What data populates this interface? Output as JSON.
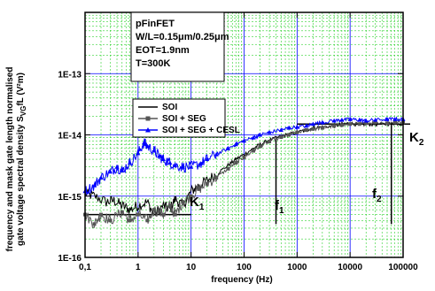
{
  "chart_data": {
    "type": "line",
    "xlabel": "frequency (Hz)",
    "ylabel_line1": "frequency and mask gate length normalised",
    "ylabel_line2_prefix": "gate voltage spectral density S",
    "ylabel_sub": "VG",
    "ylabel_line2_suffix": "fL (V²m)",
    "x_scale": "log",
    "y_scale": "log",
    "xlim": [
      0.1,
      100000
    ],
    "ylim": [
      1e-16,
      1e-12
    ],
    "grid": true,
    "x_ticks": [
      {
        "value": 0.1,
        "label": "0,1"
      },
      {
        "value": 1,
        "label": "1"
      },
      {
        "value": 10,
        "label": "10"
      },
      {
        "value": 100,
        "label": "100"
      },
      {
        "value": 1000,
        "label": "1000"
      },
      {
        "value": 10000,
        "label": "10000"
      },
      {
        "value": 100000,
        "label": "100000"
      }
    ],
    "y_ticks": [
      {
        "value": 1e-16,
        "label": "1E-16"
      },
      {
        "value": 1e-15,
        "label": "1E-15"
      },
      {
        "value": 1e-14,
        "label": "1E-14"
      },
      {
        "value": 1e-13,
        "label": "1E-13"
      }
    ],
    "info_box": [
      "pFinFET",
      "W/L=0.15μm/0.25μm",
      "EOT=1.9nm",
      "T=300K"
    ],
    "legend_position": "top-left",
    "series": [
      {
        "name": "SOI",
        "color": "#000000",
        "marker": "none",
        "points": [
          [
            0.1,
            1.1e-15
          ],
          [
            0.15,
            1e-15
          ],
          [
            0.25,
            8e-16
          ],
          [
            0.35,
            8.5e-16
          ],
          [
            0.5,
            7e-16
          ],
          [
            0.7,
            6e-16
          ],
          [
            1.0,
            7e-16
          ],
          [
            1.5,
            8e-16
          ],
          [
            2,
            5e-16
          ],
          [
            3,
            7e-16
          ],
          [
            4,
            6e-16
          ],
          [
            5,
            9e-16
          ],
          [
            7,
            7e-16
          ],
          [
            10,
            1.2e-15
          ],
          [
            14,
            1.5e-15
          ],
          [
            20,
            1.8e-15
          ],
          [
            30,
            2.3e-15
          ],
          [
            50,
            3.2e-15
          ],
          [
            70,
            4e-15
          ],
          [
            100,
            4.8e-15
          ],
          [
            150,
            6e-15
          ],
          [
            200,
            7e-15
          ],
          [
            300,
            8.2e-15
          ],
          [
            500,
            9.5e-15
          ],
          [
            700,
            1.02e-14
          ],
          [
            1000,
            1.1e-14
          ],
          [
            1500,
            1.2e-14
          ],
          [
            2000,
            1.3e-14
          ],
          [
            3000,
            1.35e-14
          ],
          [
            5000,
            1.4e-14
          ],
          [
            7000,
            1.5e-14
          ],
          [
            10000,
            1.55e-14
          ],
          [
            15000,
            1.45e-14
          ],
          [
            20000,
            1.5e-14
          ],
          [
            30000,
            1.48e-14
          ],
          [
            50000,
            1.5e-14
          ],
          [
            70000,
            1.55e-14
          ],
          [
            100000,
            1.5e-14
          ]
        ]
      },
      {
        "name": "SOI + SEG",
        "color": "#555555",
        "marker": "square",
        "points": [
          [
            0.1,
            5e-16
          ],
          [
            0.15,
            3.5e-16
          ],
          [
            0.2,
            5e-16
          ],
          [
            0.3,
            4e-16
          ],
          [
            0.5,
            5.5e-16
          ],
          [
            0.7,
            4e-16
          ],
          [
            1.0,
            5e-16
          ],
          [
            1.5,
            4e-16
          ],
          [
            2,
            6e-16
          ],
          [
            3,
            5e-16
          ],
          [
            4,
            7e-16
          ],
          [
            5,
            5e-16
          ],
          [
            7,
            8e-16
          ],
          [
            10,
            1e-15
          ],
          [
            14,
            1.3e-15
          ],
          [
            20,
            1.6e-15
          ],
          [
            30,
            2e-15
          ],
          [
            50,
            2.8e-15
          ],
          [
            70,
            3.5e-15
          ],
          [
            100,
            4.3e-15
          ],
          [
            150,
            5.5e-15
          ],
          [
            200,
            6.5e-15
          ],
          [
            300,
            7.8e-15
          ],
          [
            500,
            9.2e-15
          ],
          [
            700,
            1e-14
          ],
          [
            1000,
            1.1e-14
          ],
          [
            1500,
            1.2e-14
          ],
          [
            2000,
            1.25e-14
          ],
          [
            3000,
            1.3e-14
          ],
          [
            5000,
            1.4e-14
          ],
          [
            7000,
            1.45e-14
          ],
          [
            10000,
            1.5e-14
          ],
          [
            15000,
            1.5e-14
          ],
          [
            20000,
            1.55e-14
          ],
          [
            30000,
            1.6e-14
          ],
          [
            50000,
            1.55e-14
          ],
          [
            70000,
            1.6e-14
          ],
          [
            100000,
            1.6e-14
          ]
        ]
      },
      {
        "name": "SOI + SEG + CESL",
        "color": "#0000ff",
        "marker": "triangle",
        "points": [
          [
            0.1,
            1.2e-15
          ],
          [
            0.15,
            1.5e-15
          ],
          [
            0.2,
            2e-15
          ],
          [
            0.3,
            2.5e-15
          ],
          [
            0.4,
            3e-15
          ],
          [
            0.5,
            2.6e-15
          ],
          [
            0.7,
            3.5e-15
          ],
          [
            1.0,
            5e-15
          ],
          [
            1.3,
            7.5e-15
          ],
          [
            1.5,
            6.5e-15
          ],
          [
            2,
            5.5e-15
          ],
          [
            2.5,
            4.5e-15
          ],
          [
            3,
            4e-15
          ],
          [
            4,
            3.5e-15
          ],
          [
            5,
            3.2e-15
          ],
          [
            7,
            3e-15
          ],
          [
            10,
            3e-15
          ],
          [
            15,
            3.4e-15
          ],
          [
            20,
            4e-15
          ],
          [
            30,
            4.8e-15
          ],
          [
            50,
            6e-15
          ],
          [
            70,
            7e-15
          ],
          [
            100,
            8e-15
          ],
          [
            150,
            9e-15
          ],
          [
            200,
            1e-14
          ],
          [
            300,
            1.1e-14
          ],
          [
            500,
            1.2e-14
          ],
          [
            700,
            1.3e-14
          ],
          [
            1000,
            1.35e-14
          ],
          [
            1500,
            1.4e-14
          ],
          [
            2000,
            1.5e-14
          ],
          [
            3000,
            1.6e-14
          ],
          [
            5000,
            1.7e-14
          ],
          [
            7000,
            1.75e-14
          ],
          [
            10000,
            1.8e-14
          ],
          [
            15000,
            1.75e-14
          ],
          [
            20000,
            1.7e-14
          ],
          [
            30000,
            1.75e-14
          ],
          [
            50000,
            1.8e-14
          ],
          [
            70000,
            1.8e-14
          ],
          [
            100000,
            1.8e-14
          ]
        ]
      }
    ],
    "annotations": [
      {
        "id": "K1",
        "main": "K",
        "sub": "1",
        "line_y": 5e-16,
        "x_from": 0.1,
        "x_to": 10
      },
      {
        "id": "f1",
        "main": "f",
        "sub": "1",
        "line_x": 400,
        "y_from": 3.5e-16,
        "y_to": 9.5e-15
      },
      {
        "id": "f2",
        "main": "f",
        "sub": "2",
        "line_x": 60000,
        "y_from": 3.5e-16,
        "y_to": 1.5e-14
      },
      {
        "id": "K2",
        "main": "K",
        "sub": "2",
        "line_y": 1.5e-14,
        "x_from": 1000,
        "x_to": 100000
      }
    ]
  }
}
